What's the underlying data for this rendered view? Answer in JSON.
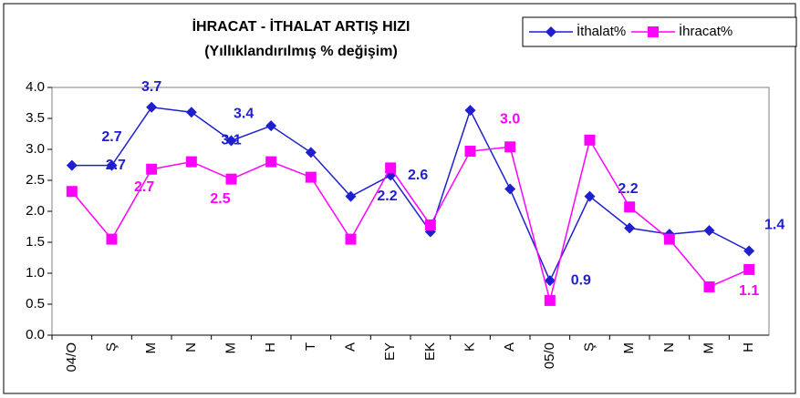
{
  "chart_data": {
    "type": "line",
    "title": "İHRACAT - İTHALAT ARTIŞ HIZI",
    "subtitle": "(Yıllıklandırılmış % değişim)",
    "categories": [
      "04/O",
      "Ş",
      "M",
      "N",
      "M",
      "H",
      "T",
      "A",
      "EY",
      "EK",
      "K",
      "A",
      "05/0",
      "Ş",
      "M",
      "N",
      "M",
      "H"
    ],
    "series": [
      {
        "name": "İthalat%",
        "color": "#1f1fd0",
        "values": [
          2.74,
          2.74,
          3.68,
          3.6,
          3.14,
          3.38,
          2.95,
          2.24,
          2.58,
          1.67,
          3.63,
          2.36,
          0.88,
          2.24,
          1.73,
          1.63,
          1.69,
          1.36
        ],
        "value_labels": [
          "2.7",
          "2.7",
          "3.7",
          null,
          "3.1",
          "3.4",
          null,
          "2.2",
          "2.6",
          null,
          null,
          null,
          "0.9",
          "2.2",
          null,
          null,
          null,
          "1.4"
        ]
      },
      {
        "name": "İhracat%",
        "color": "#ff00ff",
        "values": [
          2.32,
          1.55,
          2.68,
          2.8,
          2.52,
          2.8,
          2.55,
          1.55,
          2.7,
          1.78,
          2.97,
          3.04,
          0.56,
          3.15,
          2.07,
          1.55,
          0.78,
          1.06
        ],
        "value_labels": [
          null,
          null,
          "2.7",
          null,
          "2.5",
          null,
          null,
          null,
          null,
          null,
          null,
          "3.0",
          null,
          null,
          null,
          null,
          null,
          "1.1"
        ]
      }
    ],
    "ylim": [
      0,
      4
    ],
    "yticks": [
      {
        "value": 0,
        "label": "0.0"
      },
      {
        "value": 0.5,
        "label": "0.5"
      },
      {
        "value": 1,
        "label": "1.0"
      },
      {
        "value": 1.5,
        "label": "1.5"
      },
      {
        "value": 2,
        "label": "2.0"
      },
      {
        "value": 2.5,
        "label": "2.5"
      },
      {
        "value": 3,
        "label": "3.0"
      },
      {
        "value": 3.5,
        "label": "3.5"
      },
      {
        "value": 4,
        "label": "4.0"
      }
    ],
    "legend": "top-right"
  }
}
